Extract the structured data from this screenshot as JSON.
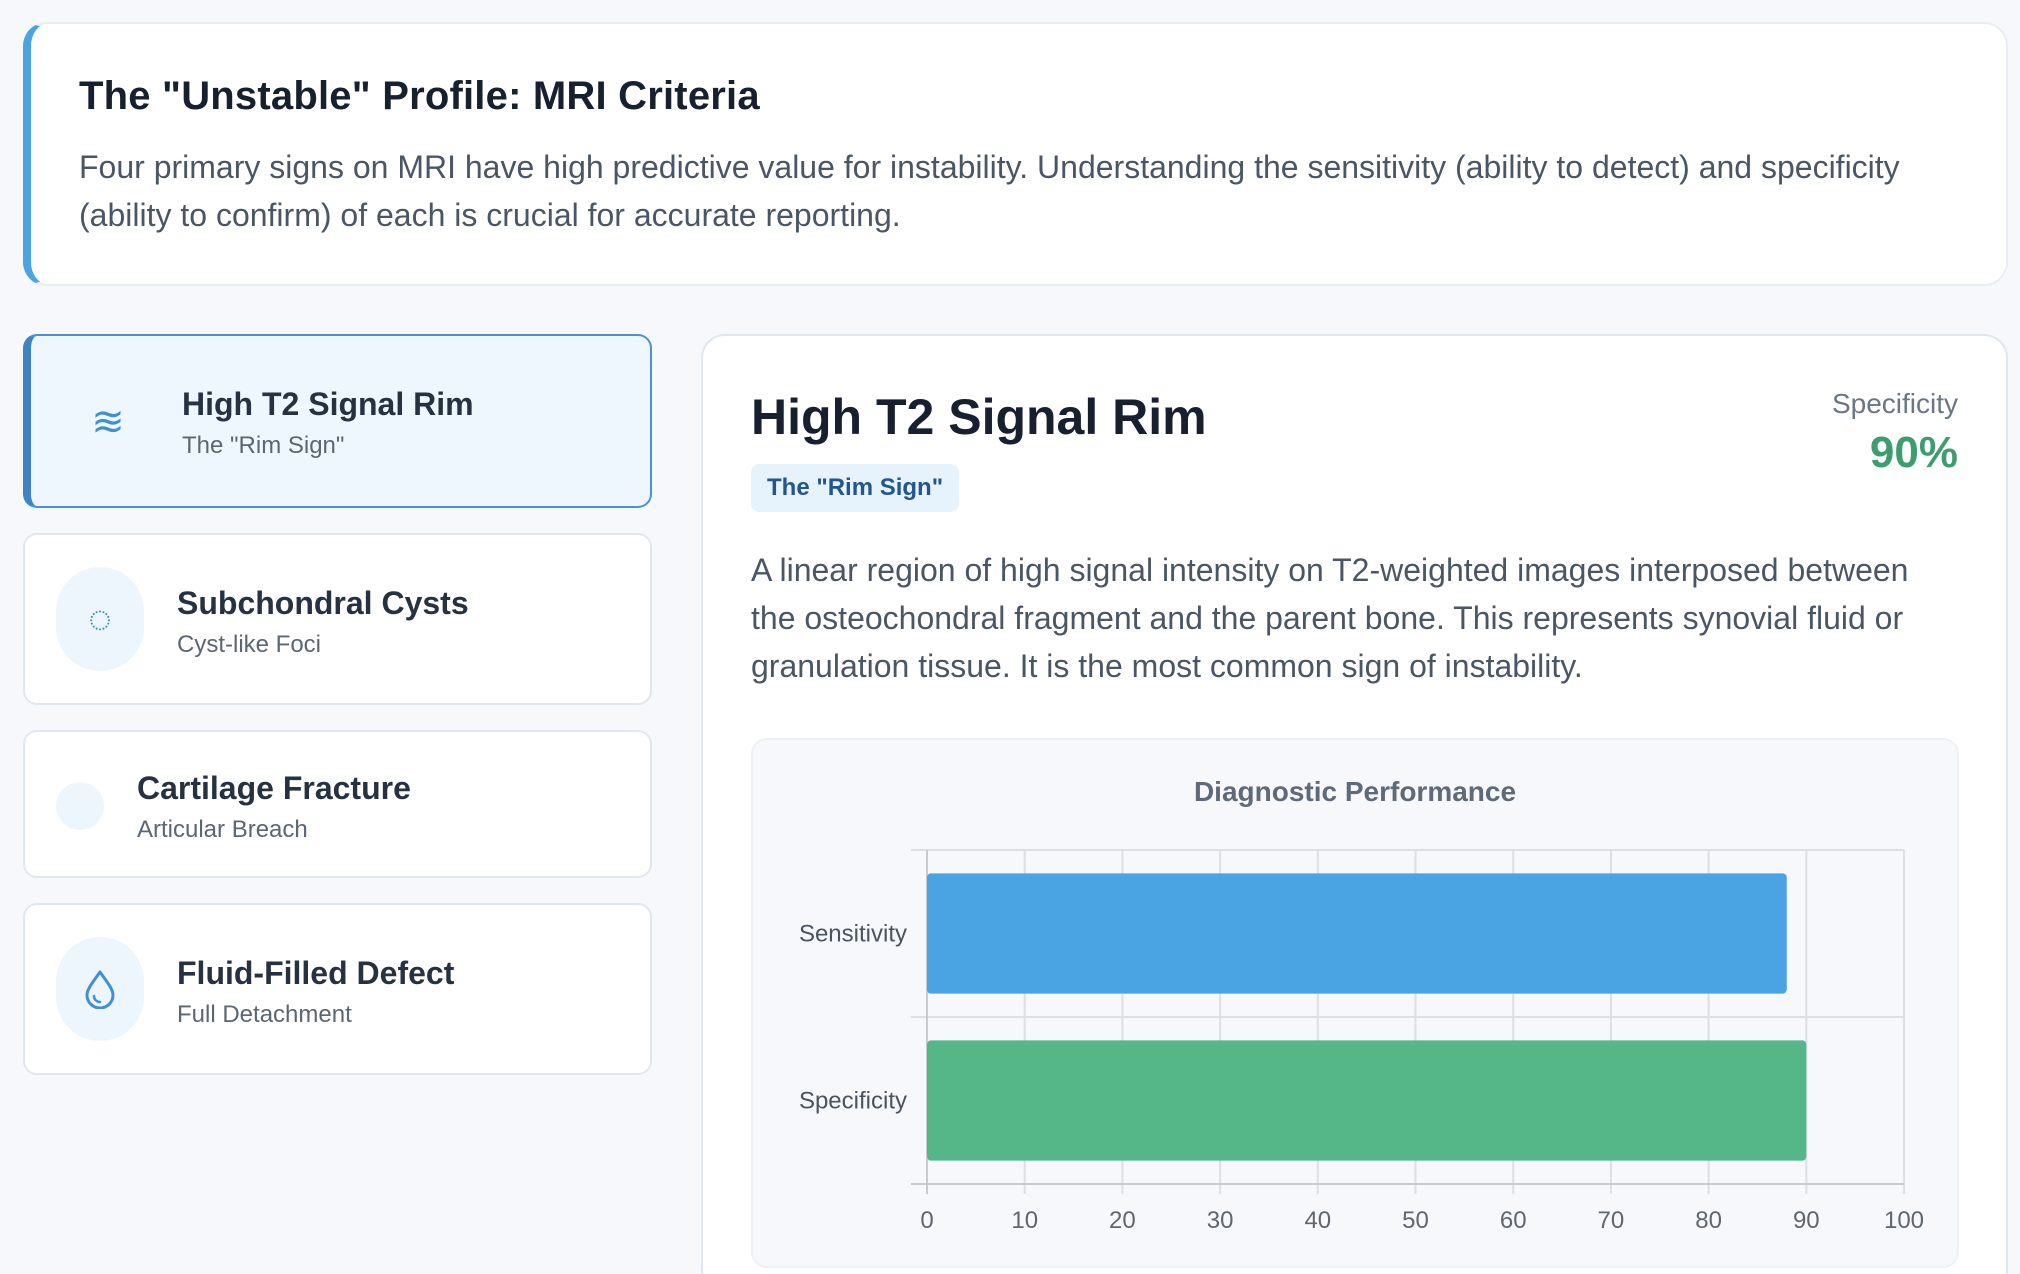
{
  "intro": {
    "title": "The \"Unstable\" Profile: MRI Criteria",
    "text": "Four primary signs on MRI have high predictive value for instability. Understanding the sensitivity (ability to detect) and specificity (ability to confirm) of each is crucial for accurate reporting."
  },
  "sidebar": {
    "items": [
      {
        "title": "High T2 Signal Rim",
        "subtitle": "The \"Rim Sign\"",
        "icon": "wave-icon",
        "glyph": "≋",
        "active": true
      },
      {
        "title": "Subchondral Cysts",
        "subtitle": "Cyst-like Foci",
        "icon": "dashed-circle-icon",
        "glyph": "◌",
        "active": false
      },
      {
        "title": "Cartilage Fracture",
        "subtitle": "Articular Breach",
        "icon": "blank-icon",
        "glyph": "",
        "active": false
      },
      {
        "title": "Fluid-Filled Defect",
        "subtitle": "Full Detachment",
        "icon": "droplet-icon",
        "glyph": "💧",
        "active": false
      }
    ]
  },
  "detail": {
    "title": "High T2 Signal Rim",
    "tag": "The \"Rim Sign\"",
    "metric_label": "Specificity",
    "metric_value": "90%",
    "description": "A linear region of high signal intensity on T2-weighted images interposed between the osteochondral fragment and the parent bone. This represents synovial fluid or granulation tissue. It is the most common sign of instability."
  },
  "colors": {
    "accent": "#4aa3e2",
    "sensitivity": "#4aa3e2",
    "specificity": "#55b787",
    "metric": "#3e9d6e"
  },
  "chart_data": {
    "type": "bar",
    "orientation": "horizontal",
    "title": "Diagnostic Performance",
    "categories": [
      "Sensitivity",
      "Specificity"
    ],
    "values": [
      88,
      90
    ],
    "colors": [
      "#4aa3e2",
      "#55b787"
    ],
    "xlim": [
      0,
      100
    ],
    "xticks": [
      0,
      10,
      20,
      30,
      40,
      50,
      60,
      70,
      80,
      90,
      100
    ],
    "grid": true,
    "legend": "none"
  }
}
